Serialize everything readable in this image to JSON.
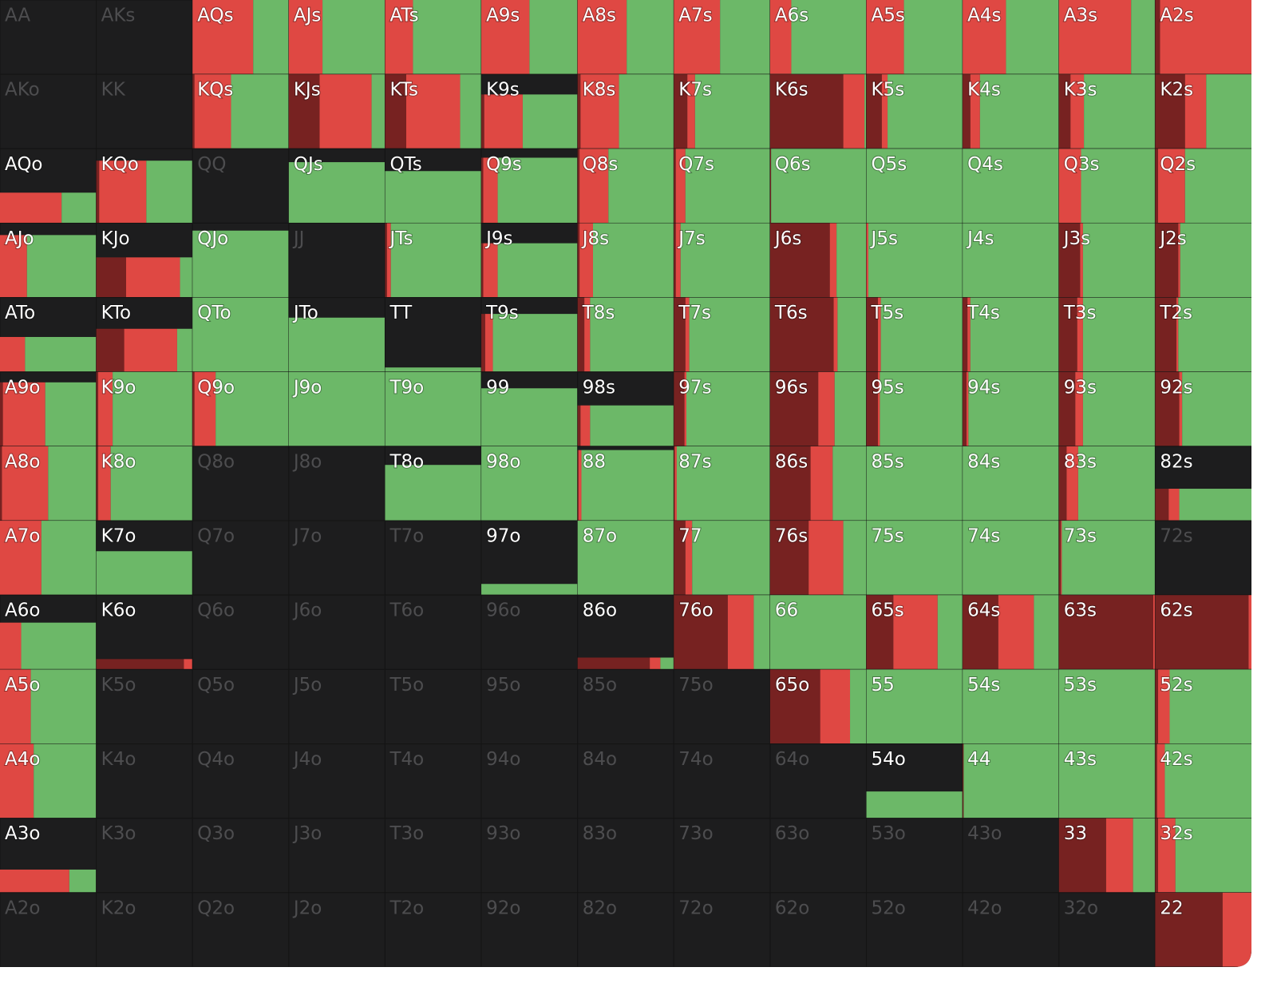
{
  "mix_colors": [
    "#772221",
    "#df4843",
    "#6cb868"
  ],
  "hands": [
    [
      {
        "label": "AA",
        "freq": 0
      },
      {
        "label": "AKs",
        "freq": 0
      },
      {
        "label": "AQs",
        "freq": 100,
        "mix": [
          0,
          63,
          37
        ]
      },
      {
        "label": "AJs",
        "freq": 100,
        "mix": [
          0,
          35,
          65
        ]
      },
      {
        "label": "ATs",
        "freq": 100,
        "mix": [
          0,
          29,
          71
        ]
      },
      {
        "label": "A9s",
        "freq": 100,
        "mix": [
          0,
          50,
          50
        ]
      },
      {
        "label": "A8s",
        "freq": 100,
        "mix": [
          0,
          51,
          49
        ]
      },
      {
        "label": "A7s",
        "freq": 100,
        "mix": [
          0,
          48,
          52
        ]
      },
      {
        "label": "A6s",
        "freq": 100,
        "mix": [
          0,
          22,
          78
        ]
      },
      {
        "label": "A5s",
        "freq": 100,
        "mix": [
          0,
          39,
          61
        ]
      },
      {
        "label": "A4s",
        "freq": 100,
        "mix": [
          0,
          45,
          55
        ]
      },
      {
        "label": "A3s",
        "freq": 100,
        "mix": [
          0,
          75,
          25
        ]
      },
      {
        "label": "A2s",
        "freq": 100,
        "mix": [
          5,
          95,
          0
        ]
      }
    ],
    [
      {
        "label": "AKo",
        "freq": 0
      },
      {
        "label": "KK",
        "freq": 0
      },
      {
        "label": "KQs",
        "freq": 100,
        "mix": [
          2,
          38,
          60
        ]
      },
      {
        "label": "KJs",
        "freq": 100,
        "mix": [
          32,
          54,
          14
        ]
      },
      {
        "label": "KTs",
        "freq": 100,
        "mix": [
          22,
          56,
          22
        ]
      },
      {
        "label": "K9s",
        "freq": 73,
        "mix": [
          3,
          40,
          57
        ]
      },
      {
        "label": "K8s",
        "freq": 100,
        "mix": [
          3,
          40,
          57
        ]
      },
      {
        "label": "K7s",
        "freq": 100,
        "mix": [
          14,
          8,
          78
        ]
      },
      {
        "label": "K6s",
        "freq": 100,
        "mix": [
          76,
          22,
          2
        ]
      },
      {
        "label": "K5s",
        "freq": 100,
        "mix": [
          16,
          6,
          78
        ]
      },
      {
        "label": "K4s",
        "freq": 100,
        "mix": [
          8,
          10,
          82
        ]
      },
      {
        "label": "K3s",
        "freq": 100,
        "mix": [
          12,
          14,
          74
        ]
      },
      {
        "label": "K2s",
        "freq": 100,
        "mix": [
          31,
          22,
          47
        ]
      }
    ],
    [
      {
        "label": "AQo",
        "freq": 41,
        "mix": [
          0,
          64,
          36
        ]
      },
      {
        "label": "KQo",
        "freq": 84,
        "mix": [
          3,
          49,
          48
        ]
      },
      {
        "label": "QQ",
        "freq": 0
      },
      {
        "label": "QJs",
        "freq": 82,
        "mix": [
          0,
          0,
          100
        ]
      },
      {
        "label": "QTs",
        "freq": 70,
        "mix": [
          0,
          0,
          100
        ]
      },
      {
        "label": "Q9s",
        "freq": 88,
        "mix": [
          2,
          15,
          83
        ]
      },
      {
        "label": "Q8s",
        "freq": 100,
        "mix": [
          2,
          30,
          68
        ]
      },
      {
        "label": "Q7s",
        "freq": 100,
        "mix": [
          2,
          10,
          88
        ]
      },
      {
        "label": "Q6s",
        "freq": 100,
        "mix": [
          1,
          0,
          99
        ]
      },
      {
        "label": "Q5s",
        "freq": 100,
        "mix": [
          0,
          0,
          100
        ]
      },
      {
        "label": "Q4s",
        "freq": 100,
        "mix": [
          0,
          0,
          100
        ]
      },
      {
        "label": "Q3s",
        "freq": 100,
        "mix": [
          0,
          23,
          77
        ]
      },
      {
        "label": "Q2s",
        "freq": 100,
        "mix": [
          3,
          28,
          69
        ]
      }
    ],
    [
      {
        "label": "AJo",
        "freq": 84,
        "mix": [
          0,
          28,
          72
        ]
      },
      {
        "label": "KJo",
        "freq": 54,
        "mix": [
          31,
          56,
          13
        ]
      },
      {
        "label": "QJo",
        "freq": 90,
        "mix": [
          0,
          0,
          100
        ]
      },
      {
        "label": "JJ",
        "freq": 0
      },
      {
        "label": "JTs",
        "freq": 100,
        "mix": [
          2,
          4,
          94
        ]
      },
      {
        "label": "J9s",
        "freq": 73,
        "mix": [
          2,
          15,
          83
        ]
      },
      {
        "label": "J8s",
        "freq": 100,
        "mix": [
          2,
          14,
          84
        ]
      },
      {
        "label": "J7s",
        "freq": 100,
        "mix": [
          2,
          5,
          93
        ]
      },
      {
        "label": "J6s",
        "freq": 100,
        "mix": [
          62,
          7,
          31
        ]
      },
      {
        "label": "J5s",
        "freq": 100,
        "mix": [
          0,
          2,
          98
        ]
      },
      {
        "label": "J4s",
        "freq": 100,
        "mix": [
          0,
          0,
          100
        ]
      },
      {
        "label": "J3s",
        "freq": 100,
        "mix": [
          22,
          3,
          75
        ]
      },
      {
        "label": "J2s",
        "freq": 100,
        "mix": [
          24,
          2,
          74
        ]
      }
    ],
    [
      {
        "label": "ATo",
        "freq": 47,
        "mix": [
          0,
          26,
          74
        ]
      },
      {
        "label": "KTo",
        "freq": 58,
        "mix": [
          29,
          55,
          16
        ]
      },
      {
        "label": "QTo",
        "freq": 100,
        "mix": [
          0,
          0,
          100
        ]
      },
      {
        "label": "JTo",
        "freq": 73,
        "mix": [
          0,
          0,
          100
        ]
      },
      {
        "label": "TT",
        "freq": 6,
        "mix": [
          0,
          0,
          100
        ]
      },
      {
        "label": "T9s",
        "freq": 78,
        "mix": [
          4,
          8,
          88
        ]
      },
      {
        "label": "T8s",
        "freq": 100,
        "mix": [
          7,
          6,
          87
        ]
      },
      {
        "label": "T7s",
        "freq": 100,
        "mix": [
          12,
          4,
          84
        ]
      },
      {
        "label": "T6s",
        "freq": 100,
        "mix": [
          66,
          4,
          30
        ]
      },
      {
        "label": "T5s",
        "freq": 100,
        "mix": [
          12,
          3,
          85
        ]
      },
      {
        "label": "T4s",
        "freq": 100,
        "mix": [
          5,
          3,
          92
        ]
      },
      {
        "label": "T3s",
        "freq": 100,
        "mix": [
          19,
          6,
          75
        ]
      },
      {
        "label": "T2s",
        "freq": 100,
        "mix": [
          22,
          2,
          76
        ]
      }
    ],
    [
      {
        "label": "A9o",
        "freq": 86,
        "mix": [
          3,
          44,
          53
        ]
      },
      {
        "label": "K9o",
        "freq": 100,
        "mix": [
          2,
          15,
          83
        ]
      },
      {
        "label": "Q9o",
        "freq": 100,
        "mix": [
          2,
          22,
          76
        ]
      },
      {
        "label": "J9o",
        "freq": 100,
        "mix": [
          0,
          0,
          100
        ]
      },
      {
        "label": "T9o",
        "freq": 100,
        "mix": [
          0,
          0,
          100
        ]
      },
      {
        "label": "99",
        "freq": 78,
        "mix": [
          0,
          0,
          100
        ]
      },
      {
        "label": "98s",
        "freq": 55,
        "mix": [
          3,
          10,
          87
        ]
      },
      {
        "label": "97s",
        "freq": 100,
        "mix": [
          11,
          2,
          87
        ]
      },
      {
        "label": "96s",
        "freq": 100,
        "mix": [
          50,
          17,
          33
        ]
      },
      {
        "label": "95s",
        "freq": 100,
        "mix": [
          12,
          2,
          86
        ]
      },
      {
        "label": "94s",
        "freq": 100,
        "mix": [
          4,
          2,
          94
        ]
      },
      {
        "label": "93s",
        "freq": 100,
        "mix": [
          17,
          8,
          75
        ]
      },
      {
        "label": "92s",
        "freq": 100,
        "mix": [
          25,
          3,
          72
        ]
      }
    ],
    [
      {
        "label": "A8o",
        "freq": 100,
        "mix": [
          2,
          48,
          50
        ]
      },
      {
        "label": "K8o",
        "freq": 100,
        "mix": [
          2,
          13,
          85
        ]
      },
      {
        "label": "Q8o",
        "freq": 0
      },
      {
        "label": "J8o",
        "freq": 0
      },
      {
        "label": "T8o",
        "freq": 75,
        "mix": [
          0,
          0,
          100
        ]
      },
      {
        "label": "98o",
        "freq": 100,
        "mix": [
          0,
          0,
          100
        ]
      },
      {
        "label": "88",
        "freq": 95,
        "mix": [
          1,
          3,
          96
        ]
      },
      {
        "label": "87s",
        "freq": 100,
        "mix": [
          1,
          2,
          97
        ]
      },
      {
        "label": "86s",
        "freq": 100,
        "mix": [
          42,
          23,
          35
        ]
      },
      {
        "label": "85s",
        "freq": 100,
        "mix": [
          0,
          0,
          100
        ]
      },
      {
        "label": "84s",
        "freq": 100,
        "mix": [
          0,
          0,
          100
        ]
      },
      {
        "label": "83s",
        "freq": 100,
        "mix": [
          8,
          12,
          80
        ]
      },
      {
        "label": "82s",
        "freq": 43,
        "mix": [
          14,
          11,
          75
        ]
      }
    ],
    [
      {
        "label": "A7o",
        "freq": 100,
        "mix": [
          0,
          43,
          57
        ]
      },
      {
        "label": "K7o",
        "freq": 59,
        "mix": [
          0,
          0,
          100
        ]
      },
      {
        "label": "Q7o",
        "freq": 0
      },
      {
        "label": "J7o",
        "freq": 0
      },
      {
        "label": "T7o",
        "freq": 0
      },
      {
        "label": "97o",
        "freq": 15,
        "mix": [
          0,
          0,
          100
        ]
      },
      {
        "label": "87o",
        "freq": 100,
        "mix": [
          0,
          0,
          100
        ]
      },
      {
        "label": "77",
        "freq": 100,
        "mix": [
          12,
          7,
          81
        ]
      },
      {
        "label": "76s",
        "freq": 100,
        "mix": [
          40,
          36,
          24
        ]
      },
      {
        "label": "75s",
        "freq": 100,
        "mix": [
          0,
          0,
          100
        ]
      },
      {
        "label": "74s",
        "freq": 100,
        "mix": [
          0,
          0,
          100
        ]
      },
      {
        "label": "73s",
        "freq": 100,
        "mix": [
          2,
          1,
          97
        ]
      },
      {
        "label": "72s",
        "freq": 0
      }
    ],
    [
      {
        "label": "A6o",
        "freq": 63,
        "mix": [
          0,
          22,
          78
        ]
      },
      {
        "label": "K6o",
        "freq": 14,
        "mix": [
          91,
          9,
          0
        ]
      },
      {
        "label": "Q6o",
        "freq": 0
      },
      {
        "label": "J6o",
        "freq": 0
      },
      {
        "label": "T6o",
        "freq": 0
      },
      {
        "label": "96o",
        "freq": 0
      },
      {
        "label": "86o",
        "freq": 16,
        "mix": [
          75,
          11,
          14
        ]
      },
      {
        "label": "76o",
        "freq": 100,
        "mix": [
          56,
          27,
          17
        ]
      },
      {
        "label": "66",
        "freq": 100,
        "mix": [
          0,
          0,
          100
        ]
      },
      {
        "label": "65s",
        "freq": 100,
        "mix": [
          28,
          46,
          26
        ]
      },
      {
        "label": "64s",
        "freq": 100,
        "mix": [
          37,
          37,
          26
        ]
      },
      {
        "label": "63s",
        "freq": 100,
        "mix": [
          98,
          2,
          0
        ]
      },
      {
        "label": "62s",
        "freq": 100,
        "mix": [
          97,
          3,
          0
        ]
      }
    ],
    [
      {
        "label": "A5o",
        "freq": 100,
        "mix": [
          0,
          32,
          68
        ]
      },
      {
        "label": "K5o",
        "freq": 0
      },
      {
        "label": "Q5o",
        "freq": 0
      },
      {
        "label": "J5o",
        "freq": 0
      },
      {
        "label": "T5o",
        "freq": 0
      },
      {
        "label": "95o",
        "freq": 0
      },
      {
        "label": "85o",
        "freq": 0
      },
      {
        "label": "75o",
        "freq": 0
      },
      {
        "label": "65o",
        "freq": 100,
        "mix": [
          52,
          31,
          17
        ]
      },
      {
        "label": "55",
        "freq": 100,
        "mix": [
          0,
          0,
          100
        ]
      },
      {
        "label": "54s",
        "freq": 100,
        "mix": [
          0,
          0,
          100
        ]
      },
      {
        "label": "53s",
        "freq": 100,
        "mix": [
          0,
          0,
          100
        ]
      },
      {
        "label": "52s",
        "freq": 100,
        "mix": [
          3,
          12,
          85
        ]
      }
    ],
    [
      {
        "label": "A4o",
        "freq": 100,
        "mix": [
          0,
          35,
          65
        ]
      },
      {
        "label": "K4o",
        "freq": 0
      },
      {
        "label": "Q4o",
        "freq": 0
      },
      {
        "label": "J4o",
        "freq": 0
      },
      {
        "label": "T4o",
        "freq": 0
      },
      {
        "label": "94o",
        "freq": 0
      },
      {
        "label": "84o",
        "freq": 0
      },
      {
        "label": "74o",
        "freq": 0
      },
      {
        "label": "64o",
        "freq": 0
      },
      {
        "label": "54o",
        "freq": 36,
        "mix": [
          0,
          0,
          100
        ]
      },
      {
        "label": "44",
        "freq": 100,
        "mix": [
          1,
          0,
          99
        ]
      },
      {
        "label": "43s",
        "freq": 100,
        "mix": [
          0,
          0,
          100
        ]
      },
      {
        "label": "42s",
        "freq": 100,
        "mix": [
          2,
          8,
          90
        ]
      }
    ],
    [
      {
        "label": "A3o",
        "freq": 31,
        "mix": [
          0,
          72,
          28
        ]
      },
      {
        "label": "K3o",
        "freq": 0
      },
      {
        "label": "Q3o",
        "freq": 0
      },
      {
        "label": "J3o",
        "freq": 0
      },
      {
        "label": "T3o",
        "freq": 0
      },
      {
        "label": "93o",
        "freq": 0
      },
      {
        "label": "83o",
        "freq": 0
      },
      {
        "label": "73o",
        "freq": 0
      },
      {
        "label": "63o",
        "freq": 0
      },
      {
        "label": "53o",
        "freq": 0
      },
      {
        "label": "43o",
        "freq": 0
      },
      {
        "label": "33",
        "freq": 100,
        "mix": [
          49,
          28,
          23
        ]
      },
      {
        "label": "32s",
        "freq": 100,
        "mix": [
          3,
          18,
          79
        ]
      }
    ],
    [
      {
        "label": "A2o",
        "freq": 0
      },
      {
        "label": "K2o",
        "freq": 0
      },
      {
        "label": "Q2o",
        "freq": 0
      },
      {
        "label": "J2o",
        "freq": 0
      },
      {
        "label": "T2o",
        "freq": 0
      },
      {
        "label": "92o",
        "freq": 0
      },
      {
        "label": "82o",
        "freq": 0
      },
      {
        "label": "72o",
        "freq": 0
      },
      {
        "label": "62o",
        "freq": 0
      },
      {
        "label": "52o",
        "freq": 0
      },
      {
        "label": "42o",
        "freq": 0
      },
      {
        "label": "32o",
        "freq": 0
      },
      {
        "label": "22",
        "freq": 100,
        "mix": [
          70,
          30,
          0
        ]
      }
    ]
  ]
}
